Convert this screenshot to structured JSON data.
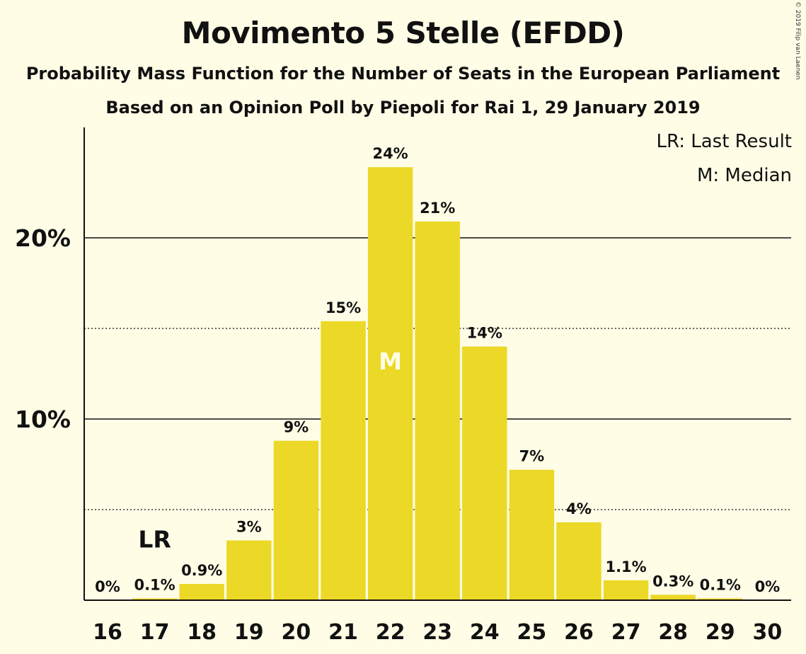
{
  "header": {
    "title": "Movimento 5 Stelle (EFDD)",
    "subtitle": "Probability Mass Function for the Number of Seats in the European Parliament",
    "source": "Based on an Opinion Poll by Piepoli for Rai 1, 29 January 2019",
    "copyright": "© 2019 Filip van Laenen"
  },
  "legend": {
    "last_result": "LR: Last Result",
    "median": "M: Median"
  },
  "colors": {
    "bar": "#ecd827",
    "background": "#fffde6",
    "median_label": "#fffde6"
  },
  "chart_data": {
    "type": "bar",
    "title": "Movimento 5 Stelle (EFDD)",
    "xlabel": "",
    "ylabel": "",
    "categories": [
      "16",
      "17",
      "18",
      "19",
      "20",
      "21",
      "22",
      "23",
      "24",
      "25",
      "26",
      "27",
      "28",
      "29",
      "30"
    ],
    "values": [
      0,
      0.1,
      0.9,
      3.3,
      8.8,
      15.4,
      23.9,
      20.9,
      14.0,
      7.2,
      4.3,
      1.1,
      0.3,
      0.1,
      0
    ],
    "data_labels": [
      "0%",
      "0.1%",
      "0.9%",
      "3%",
      "9%",
      "15%",
      "24%",
      "21%",
      "14%",
      "7%",
      "4%",
      "1.1%",
      "0.3%",
      "0.1%",
      "0%"
    ],
    "ylim": [
      0,
      26
    ],
    "yticks": [
      {
        "value": 10,
        "label": "10%",
        "style": "solid"
      },
      {
        "value": 20,
        "label": "20%",
        "style": "solid"
      }
    ],
    "minor_gridlines": [
      5,
      15
    ],
    "markers": [
      {
        "category": "17",
        "text": "LR",
        "position": "above"
      },
      {
        "category": "22",
        "text": "M",
        "position": "inside"
      }
    ],
    "legend_position": "top-right"
  }
}
